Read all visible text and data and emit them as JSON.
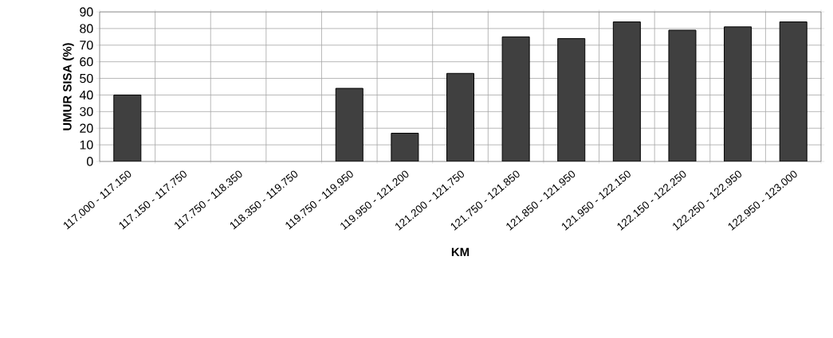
{
  "chart_data": {
    "type": "bar",
    "xlabel": "KM",
    "ylabel": "UMUR SISA (%)",
    "categories": [
      "117.000 - 117.150",
      "117.150 - 117.750",
      "117.750 - 118.350",
      "118.350 - 119.750",
      "119.750 - 119.950",
      "119.950 - 121.200",
      "121.200 - 121.750",
      "121.750 - 121.850",
      "121.850 - 121.950",
      "121.950 - 122.150",
      "122.150 - 122.250",
      "122.250 - 122.950",
      "122.950 - 123.000"
    ],
    "values": [
      40,
      null,
      null,
      null,
      44,
      17,
      53,
      75,
      74,
      84,
      79,
      81,
      84
    ],
    "color": "#404040",
    "ylim": [
      0,
      90
    ],
    "yticks": [
      0,
      10,
      20,
      30,
      40,
      50,
      60,
      70,
      80,
      90
    ],
    "grid": true
  }
}
